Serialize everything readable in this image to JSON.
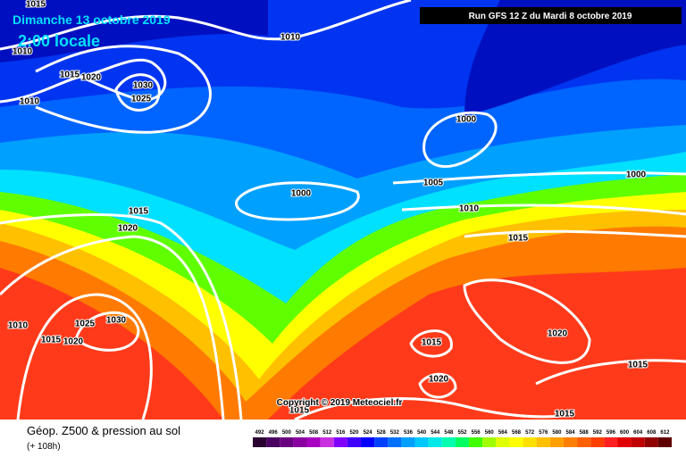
{
  "header": {
    "date": "Dimanche 13 octobre 2019",
    "time": "2:00 locale",
    "run": "Run GFS 12 Z du Mardi 8 octobre 2019"
  },
  "copyright": "Copyright © 2019 Meteociel.fr",
  "footer": {
    "title": "Géop. Z500 & pression au sol",
    "lead": "(+ 108h)"
  },
  "isobar_labels": [
    1015,
    1010,
    1015,
    1020,
    1030,
    1025,
    1010,
    1010,
    1000,
    1000,
    1005,
    1010,
    1015,
    1020,
    1015,
    1000,
    1010,
    1015,
    1020,
    1025,
    1030,
    1015,
    1020,
    1015,
    1020,
    1015,
    1015
  ],
  "colorbar": {
    "labels": [
      492,
      496,
      500,
      504,
      508,
      512,
      516,
      520,
      524,
      528,
      532,
      536,
      540,
      544,
      548,
      552,
      556,
      560,
      564,
      568,
      572,
      576,
      580,
      584,
      588,
      592,
      596,
      600,
      604,
      608,
      612
    ],
    "colors": [
      "#2a0030",
      "#4a0060",
      "#6a0080",
      "#8a00a0",
      "#a800c0",
      "#c830e0",
      "#8000ff",
      "#4000ff",
      "#0000ff",
      "#0040ff",
      "#0070ff",
      "#00a0ff",
      "#00c8ff",
      "#00e8e8",
      "#00ffb0",
      "#00ff60",
      "#40ff00",
      "#a0ff00",
      "#e0ff00",
      "#ffff00",
      "#ffe000",
      "#ffc000",
      "#ffa000",
      "#ff8000",
      "#ff6000",
      "#ff4000",
      "#ff2020",
      "#e00000",
      "#c00000",
      "#900000",
      "#600000"
    ]
  }
}
